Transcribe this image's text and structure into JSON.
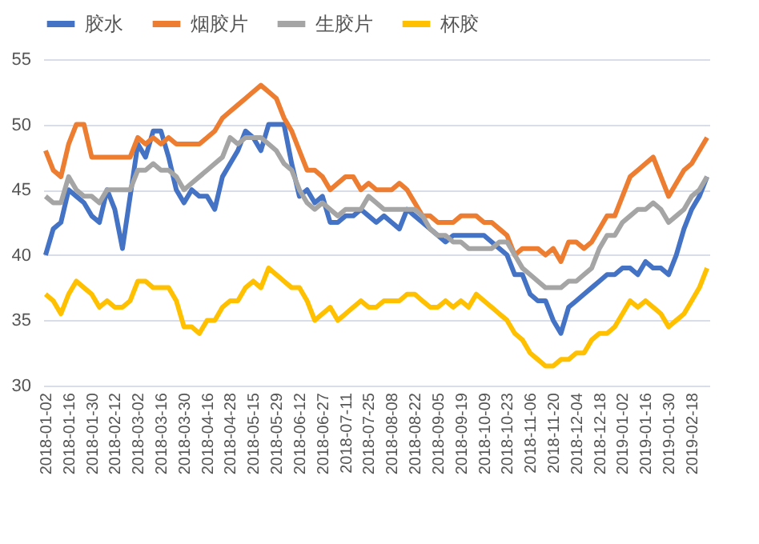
{
  "chart_data": {
    "type": "line",
    "categories": [
      "2018-01-02",
      null,
      null,
      "2018-01-16",
      null,
      null,
      "2018-01-30",
      null,
      null,
      "2018-02-12",
      null,
      null,
      "2018-03-02",
      null,
      null,
      "2018-03-16",
      null,
      null,
      "2018-03-30",
      null,
      null,
      "2018-04-16",
      null,
      null,
      "2018-04-28",
      null,
      null,
      "2018-05-15",
      null,
      null,
      "2018-05-29",
      null,
      null,
      "2018-06-12",
      null,
      null,
      "2018-06-27",
      null,
      null,
      "2018-07-11",
      null,
      null,
      "2018-07-25",
      null,
      null,
      "2018-08-08",
      null,
      null,
      "2018-08-22",
      null,
      null,
      "2018-09-05",
      null,
      null,
      "2018-09-19",
      null,
      null,
      "2018-10-09",
      null,
      null,
      "2018-10-23",
      null,
      null,
      "2018-11-06",
      null,
      null,
      "2018-11-20",
      null,
      null,
      "2018-12-04",
      null,
      null,
      "2018-12-18",
      null,
      null,
      "2019-01-02",
      null,
      null,
      "2019-01-16",
      null,
      null,
      "2019-01-30",
      null,
      null,
      "2019-02-18",
      null,
      null
    ],
    "series": [
      {
        "name": "胶水",
        "color": "#4472c4",
        "values": [
          40,
          42,
          42.5,
          45,
          44.5,
          44,
          43,
          42.5,
          45,
          43.5,
          40.5,
          44.5,
          48.5,
          47.5,
          49.5,
          49.5,
          47.5,
          45,
          44,
          45,
          44.5,
          44.5,
          43.5,
          46,
          47,
          48,
          49.5,
          49,
          48,
          50,
          50,
          50,
          47,
          44.5,
          45,
          44,
          44.5,
          42.5,
          42.5,
          43,
          43,
          43.5,
          43,
          42.5,
          43,
          42.5,
          42,
          43.5,
          43,
          42.5,
          42,
          41.5,
          41,
          41.5,
          41.5,
          41.5,
          41.5,
          41.5,
          41,
          40.5,
          40,
          38.5,
          38.5,
          37,
          36.5,
          36.5,
          35,
          34,
          36,
          36.5,
          37,
          37.5,
          38,
          38.5,
          38.5,
          39,
          39,
          38.5,
          39.5,
          39,
          39,
          38.5,
          40,
          42,
          43.5,
          44.5,
          46
        ]
      },
      {
        "name": "烟胶片",
        "color": "#ed7d31",
        "values": [
          48,
          46.5,
          46,
          48.5,
          50,
          50,
          47.5,
          47.5,
          47.5,
          47.5,
          47.5,
          47.5,
          49,
          48.5,
          49,
          48.5,
          49,
          48.5,
          48.5,
          48.5,
          48.5,
          49,
          49.5,
          50.5,
          51,
          51.5,
          52,
          52.5,
          53,
          52.5,
          52,
          50.5,
          49.5,
          48,
          46.5,
          46.5,
          46,
          45,
          45.5,
          46,
          46,
          45,
          45.5,
          45,
          45,
          45,
          45.5,
          45,
          44,
          43,
          43,
          42.5,
          42.5,
          42.5,
          43,
          43,
          43,
          42.5,
          42.5,
          42,
          41.5,
          40,
          40.5,
          40.5,
          40.5,
          40,
          40.5,
          39.5,
          41,
          41,
          40.5,
          41,
          42,
          43,
          43,
          44.5,
          46,
          46.5,
          47,
          47.5,
          46,
          44.5,
          45.5,
          46.5,
          47,
          48,
          49
        ]
      },
      {
        "name": "生胶片",
        "color": "#a5a5a5",
        "values": [
          44.5,
          44,
          44,
          46,
          45,
          44.5,
          44.5,
          44,
          45,
          45,
          45,
          45,
          46.5,
          46.5,
          47,
          46.5,
          46.5,
          46,
          45,
          45.5,
          46,
          46.5,
          47,
          47.5,
          49,
          48.5,
          49,
          49,
          49,
          48.5,
          48,
          47,
          46.5,
          45,
          44,
          43.5,
          44,
          43.5,
          43,
          43.5,
          43.5,
          43.5,
          44.5,
          44,
          43.5,
          43.5,
          43.5,
          43.5,
          43.5,
          43,
          42,
          41.5,
          41.5,
          41,
          41,
          40.5,
          40.5,
          40.5,
          40.5,
          41,
          41,
          40,
          39,
          38.5,
          38,
          37.5,
          37.5,
          37.5,
          38,
          38,
          38.5,
          39,
          40.5,
          41.5,
          41.5,
          42.5,
          43,
          43.5,
          43.5,
          44,
          43.5,
          42.5,
          43,
          43.5,
          44.5,
          45,
          46
        ]
      },
      {
        "name": "杯胶",
        "color": "#ffc000",
        "values": [
          37,
          36.5,
          35.5,
          37,
          38,
          37.5,
          37,
          36,
          36.5,
          36,
          36,
          36.5,
          38,
          38,
          37.5,
          37.5,
          37.5,
          36.5,
          34.5,
          34.5,
          34,
          35,
          35,
          36,
          36.5,
          36.5,
          37.5,
          38,
          37.5,
          39,
          38.5,
          38,
          37.5,
          37.5,
          36.5,
          35,
          35.5,
          36,
          35,
          35.5,
          36,
          36.5,
          36,
          36,
          36.5,
          36.5,
          36.5,
          37,
          37,
          36.5,
          36,
          36,
          36.5,
          36,
          36.5,
          36,
          37,
          36.5,
          36,
          35.5,
          35,
          34,
          33.5,
          32.5,
          32,
          31.5,
          31.5,
          32,
          32,
          32.5,
          32.5,
          33.5,
          34,
          34,
          34.5,
          35.5,
          36.5,
          36,
          36.5,
          36,
          35.5,
          34.5,
          35,
          35.5,
          36.5,
          37.5,
          39
        ]
      }
    ],
    "ylim": [
      30,
      55
    ],
    "yticks": [
      30,
      35,
      40,
      45,
      50,
      55
    ],
    "grid": "y",
    "legend": "top"
  }
}
